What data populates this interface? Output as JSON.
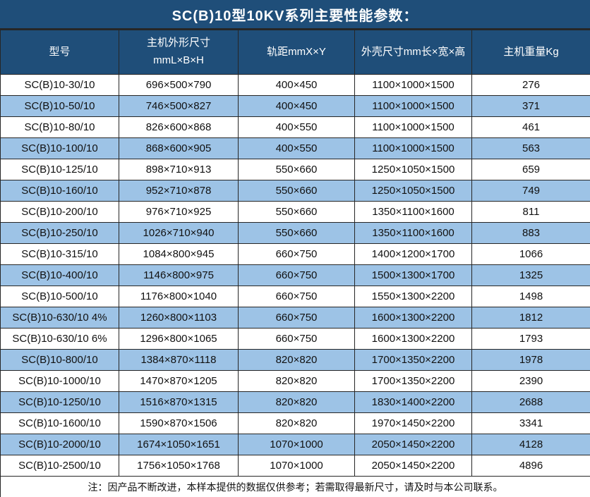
{
  "title": "SC(B)10型10KV系列主要性能参数：",
  "table": {
    "headers": [
      {
        "label": "型号",
        "label2": ""
      },
      {
        "label": "主机外形尺寸",
        "label2": "mmL×B×H"
      },
      {
        "label": "轨距mmX×Y",
        "label2": ""
      },
      {
        "label": "外壳尺寸mm长×宽×高",
        "label2": ""
      },
      {
        "label": "主机重量Kg",
        "label2": ""
      }
    ],
    "rows": [
      [
        "SC(B)10-30/10",
        "696×500×790",
        "400×450",
        "1100×1000×1500",
        "276"
      ],
      [
        "SC(B)10-50/10",
        "746×500×827",
        "400×450",
        "1100×1000×1500",
        "371"
      ],
      [
        "SC(B)10-80/10",
        "826×600×868",
        "400×550",
        "1100×1000×1500",
        "461"
      ],
      [
        "SC(B)10-100/10",
        "868×600×905",
        "400×550",
        "1100×1000×1500",
        "563"
      ],
      [
        "SC(B)10-125/10",
        "898×710×913",
        "550×660",
        "1250×1050×1500",
        "659"
      ],
      [
        "SC(B)10-160/10",
        "952×710×878",
        "550×660",
        "1250×1050×1500",
        "749"
      ],
      [
        "SC(B)10-200/10",
        "976×710×925",
        "550×660",
        "1350×1100×1600",
        "811"
      ],
      [
        "SC(B)10-250/10",
        "1026×710×940",
        "550×660",
        "1350×1100×1600",
        "883"
      ],
      [
        "SC(B)10-315/10",
        "1084×800×945",
        "660×750",
        "1400×1200×1700",
        "1066"
      ],
      [
        "SC(B)10-400/10",
        "1146×800×975",
        "660×750",
        "1500×1300×1700",
        "1325"
      ],
      [
        "SC(B)10-500/10",
        "1176×800×1040",
        "660×750",
        "1550×1300×2200",
        "1498"
      ],
      [
        "SC(B)10-630/10 4%",
        "1260×800×1103",
        "660×750",
        "1600×1300×2200",
        "1812"
      ],
      [
        "SC(B)10-630/10 6%",
        "1296×800×1065",
        "660×750",
        "1600×1300×2200",
        "1793"
      ],
      [
        "SC(B)10-800/10",
        "1384×870×1118",
        "820×820",
        "1700×1350×2200",
        "1978"
      ],
      [
        "SC(B)10-1000/10",
        "1470×870×1205",
        "820×820",
        "1700×1350×2200",
        "2390"
      ],
      [
        "SC(B)10-1250/10",
        "1516×870×1315",
        "820×820",
        "1830×1400×2200",
        "2688"
      ],
      [
        "SC(B)10-1600/10",
        "1590×870×1506",
        "820×820",
        "1970×1450×2200",
        "3341"
      ],
      [
        "SC(B)10-2000/10",
        "1674×1050×1651",
        "1070×1000",
        "2050×1450×2200",
        "4128"
      ],
      [
        "SC(B)10-2500/10",
        "1756×1050×1768",
        "1070×1000",
        "2050×1450×2200",
        "4896"
      ]
    ]
  },
  "footer_note": "注：因产品不断改进，本样本提供的数据仅供参考；若需取得最新尺寸，请及时与本公司联系。",
  "colors": {
    "header_bg": "#1F4E79",
    "row_alt_bg": "#9DC3E6",
    "row_bg": "#FFFFFF",
    "border": "#262626",
    "header_text": "#FFFFFF",
    "body_text": "#111111"
  }
}
